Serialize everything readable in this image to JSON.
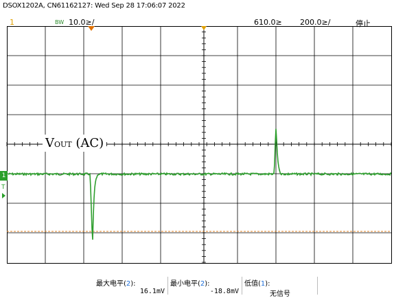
{
  "header": {
    "info": "DSOX1202A, CN61162127: Wed Sep 28 17:06:07 2022"
  },
  "top_bar": {
    "channel_number": "1",
    "bw_limit": "BW",
    "volts_per_div": "10.0≥/",
    "time_position": "610.0≥",
    "time_per_div": "200.0≥/",
    "run_state": "停止"
  },
  "screen": {
    "trace_label": {
      "main": "V",
      "sub": "OUT",
      "suffix": " (AC)"
    },
    "channel_marker": "1",
    "trigger_marker": "T",
    "colors": {
      "trace": "#2e9e2e",
      "grid": "#000000",
      "trigger_level": "#e08020"
    }
  },
  "measurements": [
    {
      "label": "最大电平",
      "channel": "2",
      "value": "16.1mV"
    },
    {
      "label": "最小电平",
      "channel": "2",
      "value": "-18.8mV"
    },
    {
      "label": "低值",
      "channel": "1",
      "value": "无信号"
    }
  ]
}
